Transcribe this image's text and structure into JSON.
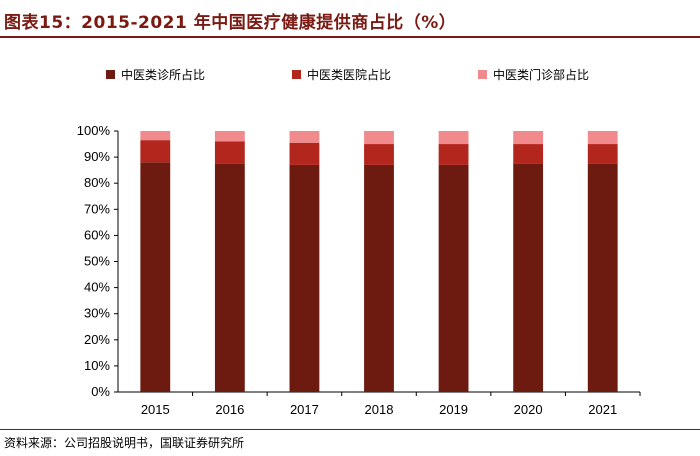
{
  "title": "图表15：2015-2021 年中国医疗健康提供商占比（%）",
  "source": "资料来源：公司招股说明书，国联证券研究所",
  "colors": {
    "accent": "#7a1a12",
    "series": [
      "#6d1a10",
      "#b3261e",
      "#f08a8c"
    ]
  },
  "chart_data": {
    "type": "bar",
    "stacked": true,
    "title": "",
    "xlabel": "",
    "ylabel": "",
    "categories": [
      "2015",
      "2016",
      "2017",
      "2018",
      "2019",
      "2020",
      "2021"
    ],
    "series": [
      {
        "name": "中医类诊所占比",
        "values": [
          88,
          87.5,
          87,
          87,
          87,
          87.5,
          87.5
        ]
      },
      {
        "name": "中医类医院占比",
        "values": [
          8.5,
          8.5,
          8.5,
          8,
          8,
          7.5,
          7.5
        ]
      },
      {
        "name": "中医类门诊部占比",
        "values": [
          3.5,
          4,
          4.5,
          5,
          5,
          5,
          5
        ]
      }
    ],
    "ylim": [
      0,
      100
    ],
    "yticks": [
      "0%",
      "10%",
      "20%",
      "30%",
      "40%",
      "50%",
      "60%",
      "70%",
      "80%",
      "90%",
      "100%"
    ],
    "grid": false,
    "legend_position": "top"
  }
}
